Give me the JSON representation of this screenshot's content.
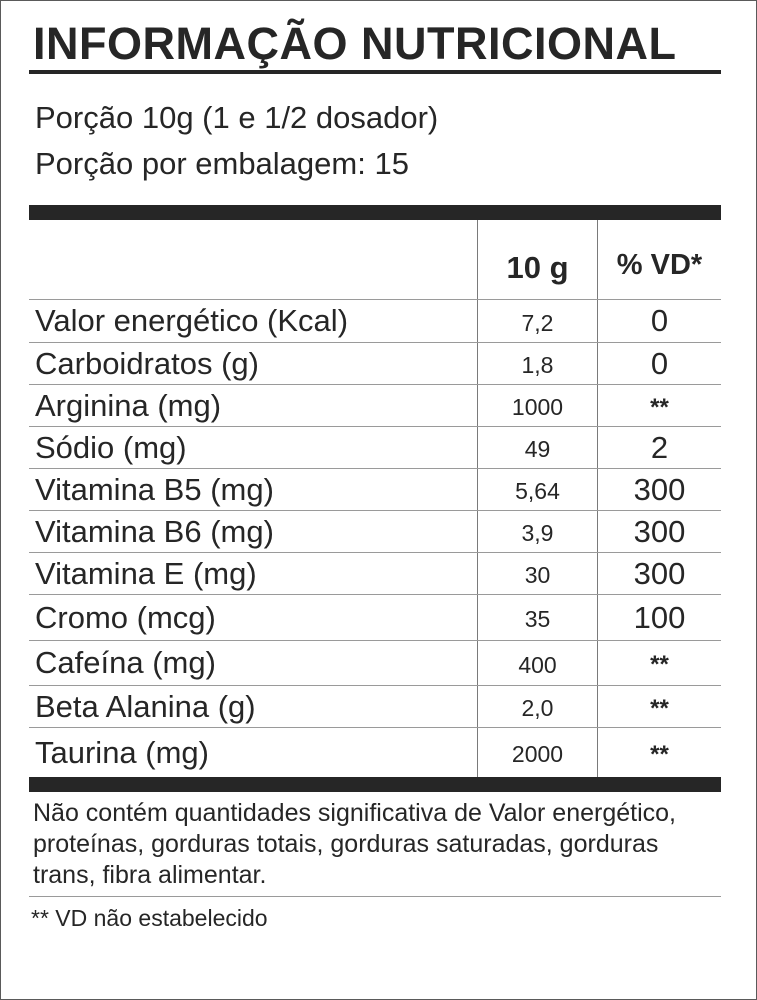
{
  "title": "INFORMAÇÃO NUTRICIONAL",
  "serving": {
    "portion": "Porção 10g (1 e 1/2 dosador)",
    "per_package": "Porção por embalagem: 15"
  },
  "table": {
    "headers": {
      "amount": "10 g",
      "daily_value": "% VD*"
    },
    "rows": [
      {
        "name": "Valor energético (Kcal)",
        "amount": "7,2",
        "vd": "0"
      },
      {
        "name": "Carboidratos (g)",
        "amount": "1,8",
        "vd": "0"
      },
      {
        "name": "Arginina (mg)",
        "amount": "1000",
        "vd": "**"
      },
      {
        "name": "Sódio (mg)",
        "amount": "49",
        "vd": "2"
      },
      {
        "name": "Vitamina B5 (mg)",
        "amount": "5,64",
        "vd": "300"
      },
      {
        "name": "Vitamina B6 (mg)",
        "amount": "3,9",
        "vd": "300"
      },
      {
        "name": "Vitamina E (mg)",
        "amount": "30",
        "vd": "300"
      },
      {
        "name": "Cromo (mcg)",
        "amount": "35",
        "vd": "100"
      },
      {
        "name": "Cafeína (mg)",
        "amount": "400",
        "vd": "**"
      },
      {
        "name": "Beta Alanina (g)",
        "amount": "2,0",
        "vd": "**"
      },
      {
        "name": "Taurina (mg)",
        "amount": "2000",
        "vd": "**"
      }
    ]
  },
  "footnotes": {
    "not_significant": "Não contém quantidades significativa de Valor energético, proteínas, gorduras totais, gorduras saturadas, gorduras trans, fibra alimentar.",
    "vd_note": "** VD não estabelecido"
  }
}
